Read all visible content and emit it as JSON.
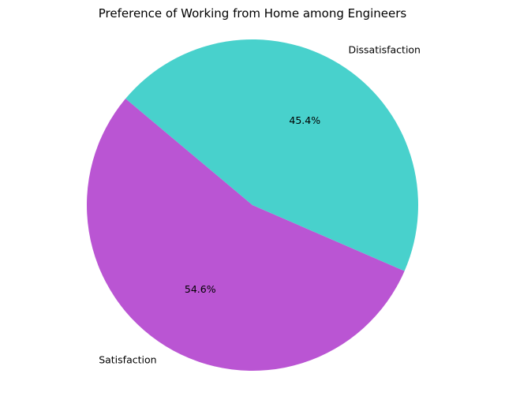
{
  "chart_data": {
    "type": "pie",
    "title": "Preference of Working from Home among Engineers",
    "slices": [
      {
        "label": "Satisfaction",
        "value": 54.6,
        "pct_label": "54.6%",
        "color": "#BA55D3"
      },
      {
        "label": "Dissatisfaction",
        "value": 45.4,
        "pct_label": "45.4%",
        "color": "#48D1CC"
      }
    ],
    "start_angle_deg": 140,
    "direction": "counterclockwise",
    "legend": "none"
  }
}
